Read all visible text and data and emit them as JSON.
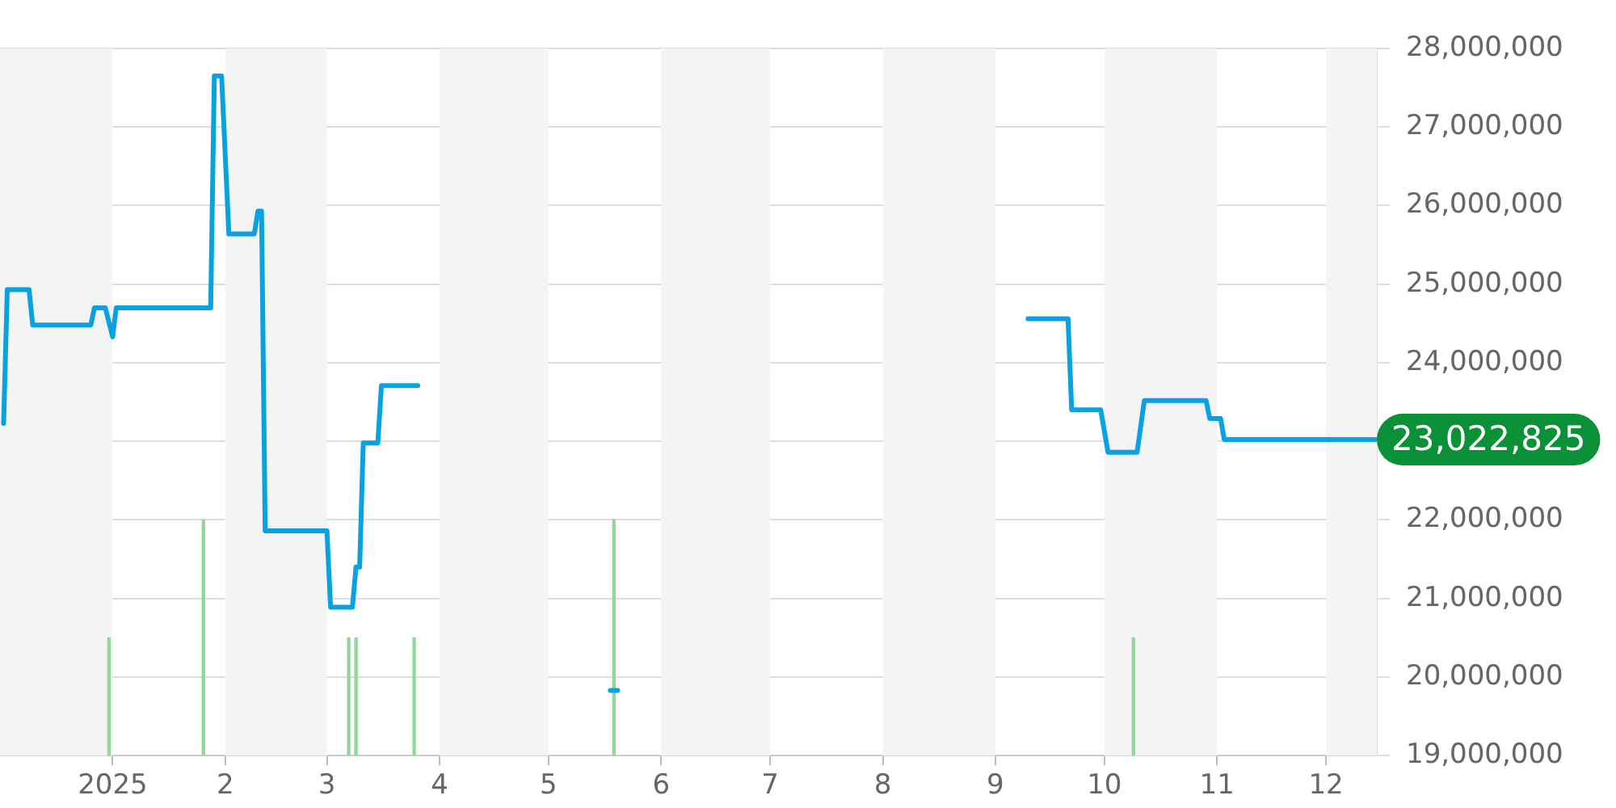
{
  "chart_data": {
    "type": "line",
    "xlim": [
      "2024-12-01",
      "2025-12-15"
    ],
    "xticks": [
      {
        "value": "2025-01-01",
        "label": "2025"
      },
      {
        "value": "2025-02-01",
        "label": "2"
      },
      {
        "value": "2025-03-01",
        "label": "3"
      },
      {
        "value": "2025-04-01",
        "label": "4"
      },
      {
        "value": "2025-05-01",
        "label": "5"
      },
      {
        "value": "2025-06-01",
        "label": "6"
      },
      {
        "value": "2025-07-01",
        "label": "7"
      },
      {
        "value": "2025-08-01",
        "label": "8"
      },
      {
        "value": "2025-09-01",
        "label": "9"
      },
      {
        "value": "2025-10-01",
        "label": "10"
      },
      {
        "value": "2025-11-01",
        "label": "11"
      },
      {
        "value": "2025-12-01",
        "label": "12"
      }
    ],
    "ylim": [
      19000000,
      28000000
    ],
    "yticks": [
      {
        "value": 19000000,
        "label": "19,000,000"
      },
      {
        "value": 20000000,
        "label": "20,000,000"
      },
      {
        "value": 21000000,
        "label": "21,000,000"
      },
      {
        "value": 22000000,
        "label": "22,000,000"
      },
      {
        "value": 23000000,
        "label": null
      },
      {
        "value": 24000000,
        "label": "24,000,000"
      },
      {
        "value": 25000000,
        "label": "25,000,000"
      },
      {
        "value": 26000000,
        "label": "26,000,000"
      },
      {
        "value": 27000000,
        "label": "27,000,000"
      },
      {
        "value": 28000000,
        "label": "28,000,000"
      }
    ],
    "grid": "y",
    "legend": false,
    "marker": "none",
    "line_style": "solid",
    "series": [
      {
        "type": "bar",
        "color": "#8fd89a",
        "x": [
          "2024-12-31",
          "2025-01-26",
          "2025-03-07",
          "2025-03-09",
          "2025-03-25",
          "2025-05-19",
          "2025-10-09"
        ],
        "values": [
          20500000,
          22000000,
          20500000,
          20500000,
          20500000,
          22000000,
          20500000
        ]
      },
      {
        "color": "#0aa0e4",
        "x": [
          "2024-12-02",
          "2024-12-03",
          "2024-12-09",
          "2024-12-10",
          "2024-12-26",
          "2024-12-27",
          "2024-12-30",
          "2025-01-01",
          "2025-01-02",
          "2025-01-28",
          "2025-01-29",
          "2025-01-31",
          "2025-02-02",
          "2025-02-09",
          "2025-02-10",
          "2025-02-11",
          "2025-02-12",
          "2025-03-01",
          "2025-03-02",
          "2025-03-08",
          "2025-03-09",
          "2025-03-10",
          "2025-03-11",
          "2025-03-15",
          "2025-03-16",
          "2025-03-26",
          "2025-04-20",
          "2025-05-18",
          "2025-05-20",
          "2025-07-15",
          "2025-09-10",
          "2025-09-21",
          "2025-09-22",
          "2025-09-30",
          "2025-10-02",
          "2025-10-10",
          "2025-10-12",
          "2025-10-29",
          "2025-10-30",
          "2025-11-02",
          "2025-11-03",
          "2025-12-15"
        ],
        "values": [
          23230000,
          24930000,
          24930000,
          24480000,
          24480000,
          24700000,
          24700000,
          24330000,
          24700000,
          24700000,
          27650000,
          27650000,
          25640000,
          25640000,
          25930000,
          25930000,
          21860000,
          21860000,
          20890000,
          20890000,
          21400000,
          21400000,
          22980000,
          22980000,
          23710000,
          23710000,
          null,
          19830000,
          19830000,
          null,
          24560000,
          24560000,
          23400000,
          23400000,
          22860000,
          22860000,
          23520000,
          23520000,
          23290000,
          23290000,
          23022825,
          23022825
        ]
      }
    ],
    "bands": [
      {
        "axis": "x",
        "from": "2024-12-01",
        "to": "2025-01-01",
        "color": "#f4f4f4"
      },
      {
        "axis": "x",
        "from": "2025-02-01",
        "to": "2025-03-01",
        "color": "#f4f4f4"
      },
      {
        "axis": "x",
        "from": "2025-04-01",
        "to": "2025-05-01",
        "color": "#f4f4f4"
      },
      {
        "axis": "x",
        "from": "2025-06-01",
        "to": "2025-07-01",
        "color": "#f4f4f4"
      },
      {
        "axis": "x",
        "from": "2025-08-01",
        "to": "2025-09-01",
        "color": "#f4f4f4"
      },
      {
        "axis": "x",
        "from": "2025-10-01",
        "to": "2025-11-01",
        "color": "#f4f4f4"
      },
      {
        "axis": "x",
        "from": "2025-12-01",
        "to": "2025-12-15",
        "color": "#f4f4f4"
      }
    ],
    "annotations": [
      {
        "text": "23,022,825",
        "x": "2025-12-15",
        "y": 23022825
      }
    ]
  }
}
